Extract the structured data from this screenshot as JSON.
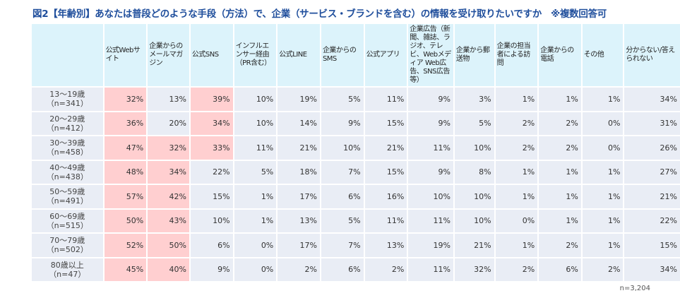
{
  "title": "図2【年齢別】あなたは普段どのような手段（方法）で、企業（サービス・ブランドを含む）の情報を受け取りたいですか　※複数回答可",
  "note": "n=3,204",
  "colors": {
    "header_bg": "#dcf3fb",
    "cell_bg": "#e9edf5",
    "highlight": "#ffcfd0",
    "title": "#1f4e9c"
  },
  "chart_data": {
    "type": "table",
    "columns": [
      "公式Webサイト",
      "企業からのメールマガジン",
      "公式SNS",
      "インフルエンサー経由（PR含む）",
      "公式LINE",
      "企業からのSMS",
      "公式アプリ",
      "企業広告（新聞、雑誌、ラジオ、テレビ、Webメディア Web広告、SNS広告等）",
      "企業から郵送物",
      "企業の担当者による訪問",
      "企業からの電話",
      "その他",
      "分からない/答えられない"
    ],
    "rows": [
      {
        "label": "13～19歳",
        "n": "（n=341）",
        "values": [
          "32%",
          "13%",
          "39%",
          "10%",
          "19%",
          "5%",
          "11%",
          "9%",
          "3%",
          "1%",
          "1%",
          "1%",
          "34%"
        ],
        "highlight": [
          0,
          2
        ]
      },
      {
        "label": "20～29歳",
        "n": "（n=412）",
        "values": [
          "36%",
          "20%",
          "34%",
          "10%",
          "14%",
          "9%",
          "15%",
          "9%",
          "5%",
          "2%",
          "2%",
          "0%",
          "31%"
        ],
        "highlight": [
          0,
          2
        ]
      },
      {
        "label": "30～39歳",
        "n": "（n=458）",
        "values": [
          "47%",
          "32%",
          "33%",
          "11%",
          "21%",
          "10%",
          "21%",
          "11%",
          "10%",
          "2%",
          "2%",
          "0%",
          "26%"
        ],
        "highlight": [
          0,
          1,
          2
        ]
      },
      {
        "label": "40～49歳",
        "n": "（n=438）",
        "values": [
          "48%",
          "34%",
          "22%",
          "5%",
          "18%",
          "7%",
          "15%",
          "9%",
          "8%",
          "1%",
          "1%",
          "1%",
          "27%"
        ],
        "highlight": [
          0,
          1
        ]
      },
      {
        "label": "50～59歳",
        "n": "（n=491）",
        "values": [
          "57%",
          "42%",
          "15%",
          "1%",
          "17%",
          "6%",
          "16%",
          "10%",
          "10%",
          "1%",
          "1%",
          "1%",
          "21%"
        ],
        "highlight": [
          0,
          1
        ]
      },
      {
        "label": "60～69歳",
        "n": "（n=515）",
        "values": [
          "50%",
          "43%",
          "10%",
          "1%",
          "13%",
          "5%",
          "11%",
          "11%",
          "10%",
          "0%",
          "1%",
          "1%",
          "22%"
        ],
        "highlight": [
          0,
          1
        ]
      },
      {
        "label": "70～79歳",
        "n": "（n=502）",
        "values": [
          "52%",
          "50%",
          "6%",
          "0%",
          "17%",
          "7%",
          "13%",
          "19%",
          "21%",
          "1%",
          "2%",
          "1%",
          "15%"
        ],
        "highlight": [
          0,
          1
        ]
      },
      {
        "label": "80歳以上",
        "n": "（n=47）",
        "values": [
          "45%",
          "40%",
          "9%",
          "0%",
          "2%",
          "6%",
          "2%",
          "11%",
          "32%",
          "2%",
          "6%",
          "2%",
          "34%"
        ],
        "highlight": [
          0,
          1
        ]
      }
    ]
  }
}
